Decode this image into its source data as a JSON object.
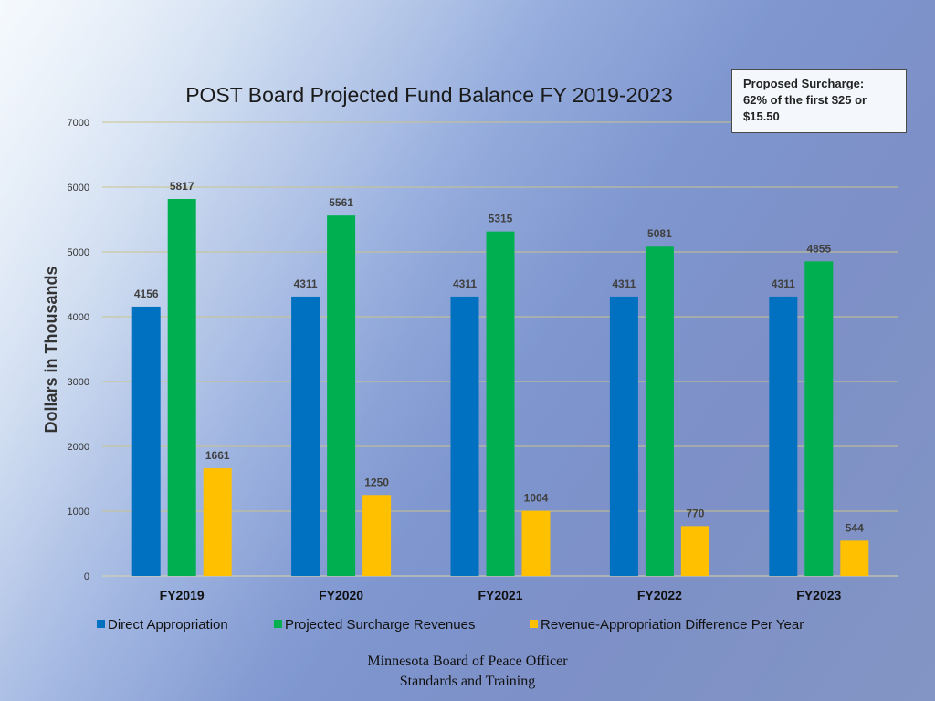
{
  "callout": {
    "lines": [
      "Proposed Surcharge:",
      "62% of the first $25 or",
      "$15.50"
    ]
  },
  "footer": {
    "line1": "Minnesota Board of Peace Officer",
    "line2": "Standards and Training"
  },
  "chart_data": {
    "type": "bar",
    "title": "POST Board Projected Fund Balance FY 2019-2023",
    "ylabel": "Dollars in Thousands",
    "xlabel": "",
    "ylim": [
      0,
      7000
    ],
    "yticks": [
      0,
      1000,
      2000,
      3000,
      4000,
      5000,
      6000,
      7000
    ],
    "grid": true,
    "legend_position": "bottom",
    "categories": [
      "FY2019",
      "FY2020",
      "FY2021",
      "FY2022",
      "FY2023"
    ],
    "series": [
      {
        "name": "Direct Appropriation",
        "color": "#0070c0",
        "values": [
          4156,
          4311,
          4311,
          4311,
          4311
        ]
      },
      {
        "name": "Projected Surcharge Revenues",
        "color": "#00b050",
        "values": [
          5817,
          5561,
          5315,
          5081,
          4855
        ]
      },
      {
        "name": "Revenue-Appropriation Difference Per Year",
        "color": "#ffc000",
        "values": [
          1661,
          1250,
          1004,
          770,
          544
        ]
      }
    ]
  }
}
